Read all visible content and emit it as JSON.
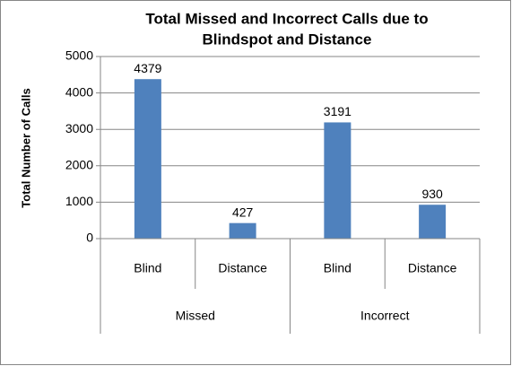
{
  "chart_data": {
    "type": "bar",
    "title": [
      "Total Missed and Incorrect Calls due to",
      "Blindspot and Distance"
    ],
    "y_label": "Total Number of Calls",
    "categories": [
      "Blind",
      "Distance",
      "Blind",
      "Distance"
    ],
    "category_groups": [
      "Missed",
      "Incorrect"
    ],
    "values": [
      4379,
      427,
      3191,
      930
    ],
    "color": "#4f81bd",
    "ylim": [
      0,
      5000
    ],
    "yticks": [
      0,
      1000,
      2000,
      3000,
      4000,
      5000
    ],
    "grid": true
  }
}
